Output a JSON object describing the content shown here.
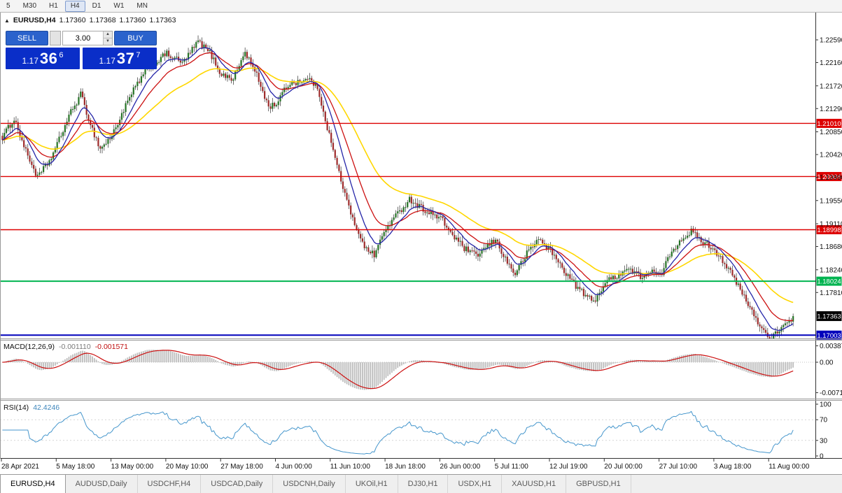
{
  "toolbar": {
    "periods": [
      {
        "label": "5",
        "active": false
      },
      {
        "label": "M30",
        "active": false
      },
      {
        "label": "H1",
        "active": false
      },
      {
        "label": "H4",
        "active": true
      },
      {
        "label": "D1",
        "active": false
      },
      {
        "label": "W1",
        "active": false
      },
      {
        "label": "MN",
        "active": false
      }
    ]
  },
  "chart_header": {
    "collapse_icon": "▲",
    "symbol": "EURUSD,H4",
    "open": "1.17360",
    "high": "1.17368",
    "low": "1.17360",
    "close": "1.17363"
  },
  "one_click": {
    "sell_label": "SELL",
    "buy_label": "BUY",
    "volume": "3.00",
    "sell_price": {
      "prefix": "1.17",
      "big": "36",
      "sup": "6"
    },
    "buy_price": {
      "prefix": "1.17",
      "big": "37",
      "sup": "7"
    }
  },
  "indicators": {
    "macd": {
      "name": "MACD(12,26,9)",
      "value_main": "-0.001110",
      "value_signal": "-0.001571",
      "axis": [
        "0.00387",
        "0.00",
        "-0.00719"
      ]
    },
    "rsi": {
      "name": "RSI(14)",
      "value": "42.4246",
      "axis": [
        "100",
        "70",
        "30",
        "0"
      ]
    }
  },
  "price_axis": [
    "1.22590",
    "1.22160",
    "1.21720",
    "1.21290",
    "1.20850",
    "1.20420",
    "1.19990",
    "1.19550",
    "1.19110",
    "1.18680",
    "1.18240",
    "1.17810"
  ],
  "current_price_tag": "1.17363",
  "time_axis": [
    "28 Apr 2021",
    "5 May 18:00",
    "13 May 00:00",
    "20 May 10:00",
    "27 May 18:00",
    "4 Jun 00:00",
    "11 Jun 10:00",
    "18 Jun 18:00",
    "26 Jun 00:00",
    "5 Jul 11:00",
    "12 Jul 19:00",
    "20 Jul 00:00",
    "27 Jul 10:00",
    "3 Aug 18:00",
    "11 Aug 00:00"
  ],
  "tabs": [
    {
      "label": "EURUSD,H4",
      "active": true
    },
    {
      "label": "AUDUSD,Daily",
      "active": false
    },
    {
      "label": "USDCHF,H4",
      "active": false
    },
    {
      "label": "USDCAD,Daily",
      "active": false
    },
    {
      "label": "USDCNH,Daily",
      "active": false
    },
    {
      "label": "UKOil,H1",
      "active": false
    },
    {
      "label": "DJ30,H1",
      "active": false
    },
    {
      "label": "USDX,H1",
      "active": false
    },
    {
      "label": "XAUUSD,H1",
      "active": false
    },
    {
      "label": "GBPUSD,H1",
      "active": false
    }
  ],
  "colors": {
    "bull": "#267326",
    "bear": "#9e2b2b",
    "wick": "#303030",
    "ma_fast": "#2525a8",
    "ma_mid": "#cc1111",
    "ma_slow": "#ffd700",
    "macd_hist": "#bdbdbd",
    "macd_signal": "#cc1111",
    "rsi_line": "#4596cc",
    "level_red": "#dd0000",
    "level_green": "#00b450",
    "level_blue": "#0000bb",
    "price_tag_bg": "#000000",
    "buy_sell_blue": "#0a2ec8"
  },
  "chart_data": {
    "type": "candlestick",
    "symbol": "EURUSD",
    "timeframe": "H4",
    "visible_range": {
      "start": "28 Apr 2021",
      "end": "11 Aug 2021"
    },
    "price_axis_range": [
      1.1694,
      1.2311
    ],
    "candle_count": 405,
    "last_close": 1.17363,
    "close_path_anchors": [
      [
        0,
        1.207
      ],
      [
        6,
        1.2102
      ],
      [
        12,
        1.2038
      ],
      [
        18,
        1.199
      ],
      [
        24,
        1.2025
      ],
      [
        28,
        1.206
      ],
      [
        34,
        1.212
      ],
      [
        40,
        1.2165
      ],
      [
        46,
        1.21
      ],
      [
        50,
        1.2063
      ],
      [
        56,
        1.2085
      ],
      [
        62,
        1.213
      ],
      [
        68,
        1.217
      ],
      [
        74,
        1.22
      ],
      [
        84,
        1.2232
      ],
      [
        92,
        1.2218
      ],
      [
        100,
        1.2262
      ],
      [
        106,
        1.224
      ],
      [
        112,
        1.2195
      ],
      [
        118,
        1.2183
      ],
      [
        124,
        1.2228
      ],
      [
        130,
        1.218
      ],
      [
        136,
        1.212
      ],
      [
        140,
        1.2128
      ],
      [
        146,
        1.2168
      ],
      [
        152,
        1.218
      ],
      [
        158,
        1.2187
      ],
      [
        162,
        1.216
      ],
      [
        166,
        1.21
      ],
      [
        170,
        1.204
      ],
      [
        174,
        1.1985
      ],
      [
        178,
        1.193
      ],
      [
        182,
        1.1895
      ],
      [
        186,
        1.186
      ],
      [
        190,
        1.185
      ],
      [
        196,
        1.19
      ],
      [
        202,
        1.193
      ],
      [
        208,
        1.1962
      ],
      [
        214,
        1.195
      ],
      [
        220,
        1.1938
      ],
      [
        224,
        1.1932
      ],
      [
        230,
        1.1898
      ],
      [
        236,
        1.1868
      ],
      [
        242,
        1.1848
      ],
      [
        248,
        1.1862
      ],
      [
        252,
        1.1872
      ],
      [
        258,
        1.1828
      ],
      [
        262,
        1.1808
      ],
      [
        268,
        1.185
      ],
      [
        274,
        1.1882
      ],
      [
        280,
        1.1862
      ],
      [
        286,
        1.183
      ],
      [
        292,
        1.1798
      ],
      [
        298,
        1.1772
      ],
      [
        302,
        1.1758
      ],
      [
        308,
        1.1792
      ],
      [
        314,
        1.1806
      ],
      [
        320,
        1.1822
      ],
      [
        326,
        1.1812
      ],
      [
        332,
        1.1826
      ],
      [
        336,
        1.182
      ],
      [
        342,
        1.1872
      ],
      [
        348,
        1.1898
      ],
      [
        352,
        1.1906
      ],
      [
        356,
        1.1888
      ],
      [
        360,
        1.1876
      ],
      [
        364,
        1.1862
      ],
      [
        370,
        1.1828
      ],
      [
        376,
        1.1788
      ],
      [
        382,
        1.1748
      ],
      [
        388,
        1.1712
      ],
      [
        392,
        1.1698
      ],
      [
        396,
        1.1708
      ],
      [
        400,
        1.1722
      ],
      [
        404,
        1.17363
      ]
    ],
    "levels": [
      {
        "price": 1.2101,
        "label": "1.21010",
        "type": "resistance",
        "color_key": "level_red"
      },
      {
        "price": 1.20004,
        "label": "1.20004",
        "type": "resistance",
        "color_key": "level_red"
      },
      {
        "price": 1.18998,
        "label": "1.18998",
        "type": "resistance",
        "color_key": "level_red"
      },
      {
        "price": 1.18024,
        "label": "1.18024",
        "type": "support",
        "color_key": "level_green"
      },
      {
        "price": 1.17003,
        "label": "1.17003",
        "type": "support",
        "color_key": "level_blue"
      }
    ],
    "indicators": {
      "moving_averages": [
        {
          "period": 10,
          "color_key": "ma_fast"
        },
        {
          "period": 21,
          "color_key": "ma_mid"
        },
        {
          "period": 50,
          "color_key": "ma_slow"
        }
      ],
      "macd": {
        "params": [
          12,
          26,
          9
        ],
        "current": [
          -0.00111,
          -0.001571
        ],
        "axis_max": 0.00387,
        "axis_min": -0.00719
      },
      "rsi": {
        "period": 14,
        "current": 42.4246,
        "axis": [
          100,
          70,
          30,
          0
        ]
      }
    }
  }
}
